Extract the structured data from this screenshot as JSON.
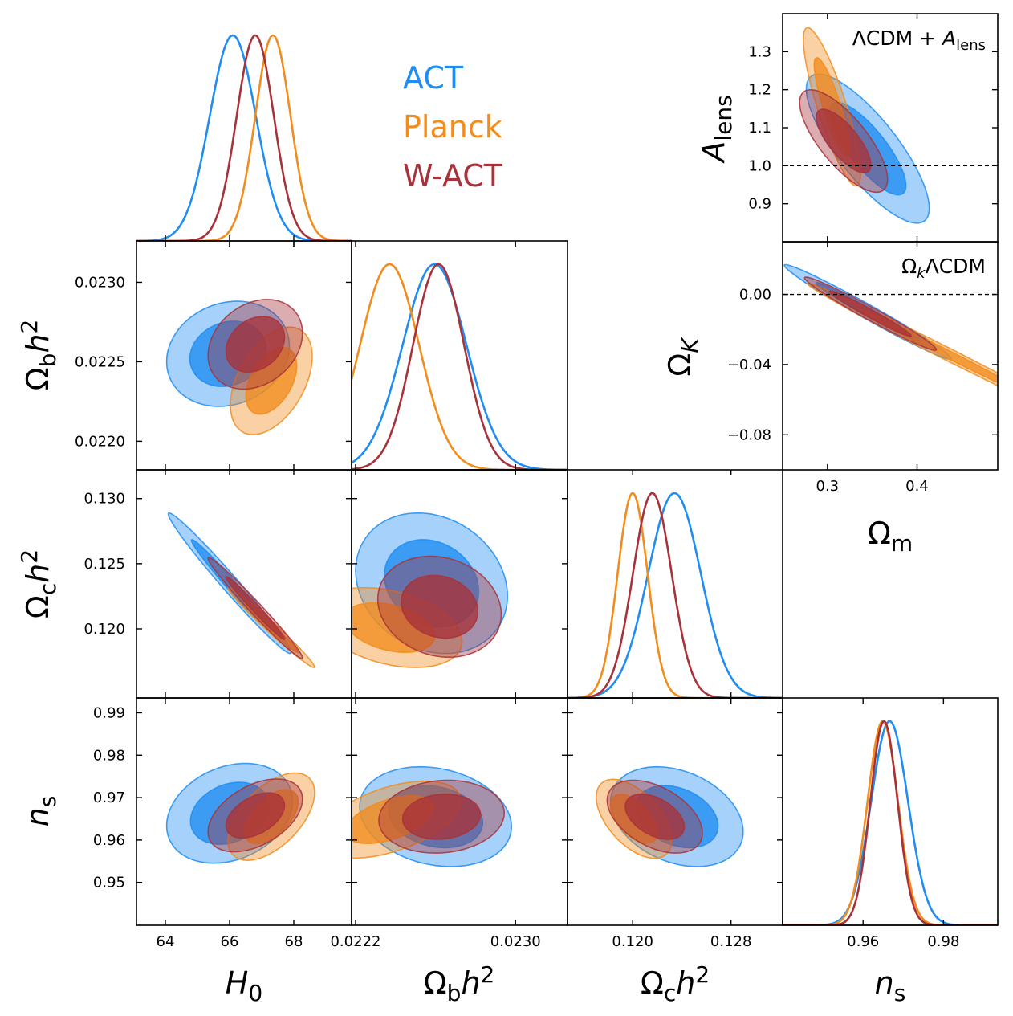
{
  "chart_data": {
    "type": "scatter",
    "subtype": "triangle-corner-plot",
    "legend": [
      {
        "name": "ACT",
        "color": "#1f8df2"
      },
      {
        "name": "Planck",
        "color": "#f28c1d"
      },
      {
        "name": "W-ACT",
        "color": "#a8323a"
      }
    ],
    "parameters": [
      {
        "key": "H0",
        "label": "H",
        "sub": "0",
        "sup": "",
        "italic": true,
        "xlim": [
          63.1,
          69.8
        ],
        "ticks": [
          "64",
          "66",
          "68"
        ],
        "tick_values": [
          64,
          66,
          68
        ]
      },
      {
        "key": "ombh2",
        "label": "Ωbh",
        "sub": "b",
        "sup": "2",
        "italic": false,
        "xlim": [
          0.02218,
          0.02326
        ],
        "ticks": [
          "0.0222",
          "0.0230"
        ],
        "tick_values": [
          0.0222,
          0.023
        ],
        "y_ticks": [
          "0.0220",
          "0.0225",
          "0.0230"
        ],
        "y_tick_values": [
          0.022,
          0.0225,
          0.023
        ]
      },
      {
        "key": "omch2",
        "label": "Ωch",
        "sub": "c",
        "sup": "2",
        "italic": false,
        "xlim": [
          0.1147,
          0.1322
        ],
        "ticks": [
          "0.120",
          "0.128"
        ],
        "tick_values": [
          0.12,
          0.128
        ],
        "y_ticks": [
          "0.120",
          "0.125",
          "0.130"
        ],
        "y_tick_values": [
          0.12,
          0.125,
          0.13
        ]
      },
      {
        "key": "ns",
        "label": "n",
        "sub": "s",
        "sup": "",
        "italic": true,
        "xlim": [
          0.94,
          0.9935
        ],
        "ticks": [
          "0.96",
          "0.98"
        ],
        "tick_values": [
          0.96,
          0.98
        ],
        "y_ticks": [
          "0.95",
          "0.96",
          "0.97",
          "0.98",
          "0.99"
        ],
        "y_tick_values": [
          0.95,
          0.96,
          0.97,
          0.98,
          0.99
        ]
      }
    ],
    "axis_labels": {
      "H0": {
        "main": "H",
        "sub": "0"
      },
      "ombh2": {
        "main": "Ω",
        "sub": "b",
        "tail": "h",
        "sup": "2"
      },
      "omch2": {
        "main": "Ω",
        "sub": "c",
        "tail": "h",
        "sup": "2"
      },
      "ns": {
        "main": "n",
        "sub": "s"
      },
      "Alens": {
        "main": "A",
        "sub": "lens"
      },
      "OmK": {
        "main": "Ω",
        "sub": "K"
      },
      "Omm": {
        "main": "Ω",
        "sub": "m"
      }
    },
    "marginals": {
      "H0": {
        "ACT": {
          "mean": 66.1,
          "sd": 0.72
        },
        "Planck": {
          "mean": 67.35,
          "sd": 0.55
        },
        "W-ACT": {
          "mean": 66.8,
          "sd": 0.58
        }
      },
      "ombh2": {
        "ACT": {
          "mean": 0.022595,
          "sd": 0.00016
        },
        "Planck": {
          "mean": 0.02237,
          "sd": 0.000148
        },
        "W-ACT": {
          "mean": 0.022615,
          "sd": 0.000128
        }
      },
      "omch2": {
        "ACT": {
          "mean": 0.1234,
          "sd": 0.00215
        },
        "Planck": {
          "mean": 0.12,
          "sd": 0.00122
        },
        "W-ACT": {
          "mean": 0.1216,
          "sd": 0.00158
        }
      },
      "ns": {
        "ACT": {
          "mean": 0.9666,
          "sd": 0.0046
        },
        "Planck": {
          "mean": 0.9649,
          "sd": 0.0038
        },
        "W-ACT": {
          "mean": 0.9652,
          "sd": 0.0034
        }
      }
    },
    "contours": [
      {
        "x": "H0",
        "y": "ombh2",
        "ACT": {
          "mean": [
            65.95,
            0.02255
          ],
          "sd": [
            0.78,
            0.000135
          ],
          "rho": 0.15
        },
        "Planck": {
          "mean": [
            67.3,
            0.02238
          ],
          "sd": [
            0.52,
            0.000138
          ],
          "rho": 0.45
        },
        "W-ACT": {
          "mean": [
            66.8,
            0.02261
          ],
          "sd": [
            0.6,
            0.000115
          ],
          "rho": 0.25
        }
      },
      {
        "x": "H0",
        "y": "omch2",
        "ACT": {
          "mean": [
            66.0,
            0.1235
          ],
          "sd": [
            0.78,
            0.0022
          ],
          "rho": -0.985
        },
        "Planck": {
          "mean": [
            67.3,
            0.1201
          ],
          "sd": [
            0.55,
            0.00125
          ],
          "rho": -0.985
        },
        "W-ACT": {
          "mean": [
            66.8,
            0.1216
          ],
          "sd": [
            0.6,
            0.00158
          ],
          "rho": -0.985
        }
      },
      {
        "x": "ombh2",
        "y": "omch2",
        "ACT": {
          "mean": [
            0.02258,
            0.1235
          ],
          "sd": [
            0.000155,
            0.0022
          ],
          "rho": -0.18
        },
        "Planck": {
          "mean": [
            0.02237,
            0.1201
          ],
          "sd": [
            0.000148,
            0.00125
          ],
          "rho": -0.35
        },
        "W-ACT": {
          "mean": [
            0.02262,
            0.1217
          ],
          "sd": [
            0.000126,
            0.00158
          ],
          "rho": -0.15
        }
      },
      {
        "x": "H0",
        "y": "ns",
        "ACT": {
          "mean": [
            66.0,
            0.9663
          ],
          "sd": [
            0.8,
            0.0048
          ],
          "rho": 0.25
        },
        "Planck": {
          "mean": [
            67.3,
            0.9655
          ],
          "sd": [
            0.55,
            0.0042
          ],
          "rho": 0.55
        },
        "W-ACT": {
          "mean": [
            66.8,
            0.9658
          ],
          "sd": [
            0.6,
            0.0035
          ],
          "rho": 0.45
        }
      },
      {
        "x": "ombh2",
        "y": "ns",
        "ACT": {
          "mean": [
            0.0226,
            0.9655
          ],
          "sd": [
            0.000155,
            0.0048
          ],
          "rho": -0.2
        },
        "Planck": {
          "mean": [
            0.02237,
            0.9648
          ],
          "sd": [
            0.000145,
            0.0037
          ],
          "rho": 0.5
        },
        "W-ACT": {
          "mean": [
            0.02263,
            0.9655
          ],
          "sd": [
            0.000128,
            0.0035
          ],
          "rho": 0.1
        }
      },
      {
        "x": "omch2",
        "y": "ns",
        "ACT": {
          "mean": [
            0.1236,
            0.9655
          ],
          "sd": [
            0.0022,
            0.0048
          ],
          "rho": -0.3
        },
        "Planck": {
          "mean": [
            0.1201,
            0.965
          ],
          "sd": [
            0.00125,
            0.0038
          ],
          "rho": -0.55
        },
        "W-ACT": {
          "mean": [
            0.1218,
            0.9655
          ],
          "sd": [
            0.00158,
            0.0035
          ],
          "rho": -0.45
        }
      }
    ],
    "extension_panels": [
      {
        "title": "ΛCDM + ",
        "title_sym": "A",
        "title_sub": "lens",
        "ylabel": {
          "main": "A",
          "sub": "lens"
        },
        "xlim": [
          0.25,
          0.49
        ],
        "ylim": [
          0.8,
          1.4
        ],
        "yticks": [
          "0.9",
          "1.0",
          "1.1",
          "1.2",
          "1.3"
        ],
        "ytick_values": [
          0.9,
          1.0,
          1.1,
          1.2,
          1.3
        ],
        "reference_line": 1.0,
        "ACT": {
          "mean": [
            0.345,
            1.045
          ],
          "sd": [
            0.028,
            0.08
          ],
          "rho": -0.8
        },
        "Planck": {
          "mean": [
            0.305,
            1.155
          ],
          "sd": [
            0.013,
            0.085
          ],
          "rho": -0.85
        },
        "W-ACT": {
          "mean": [
            0.318,
            1.065
          ],
          "sd": [
            0.02,
            0.055
          ],
          "rho": -0.75
        }
      },
      {
        "title": "Ω",
        "title_sub": "k",
        "title_tail": "ΛCDM",
        "ylabel": {
          "main": "Ω",
          "sub": "K"
        },
        "xlim": [
          0.25,
          0.49
        ],
        "ylim": [
          -0.1,
          0.03
        ],
        "yticks": [
          "0.00",
          "−0.04",
          "−0.08"
        ],
        "ytick_values": [
          0.0,
          -0.04,
          -0.08
        ],
        "xticks": [
          "0.3",
          "0.4"
        ],
        "xtick_values": [
          0.3,
          0.4
        ],
        "xlabel": {
          "main": "Ω",
          "sub": "m"
        },
        "reference_line": 0.0,
        "ACT": {
          "mean": [
            0.345,
            -0.01
          ],
          "sd": [
            0.038,
            0.011
          ],
          "rho": -0.985
        },
        "Planck": {
          "mean": [
            0.43,
            -0.033
          ],
          "sd": [
            0.062,
            0.016
          ],
          "rho": -0.995
        },
        "W-ACT": {
          "mean": [
            0.348,
            -0.011
          ],
          "sd": [
            0.03,
            0.0085
          ],
          "rho": -0.98
        }
      }
    ]
  }
}
